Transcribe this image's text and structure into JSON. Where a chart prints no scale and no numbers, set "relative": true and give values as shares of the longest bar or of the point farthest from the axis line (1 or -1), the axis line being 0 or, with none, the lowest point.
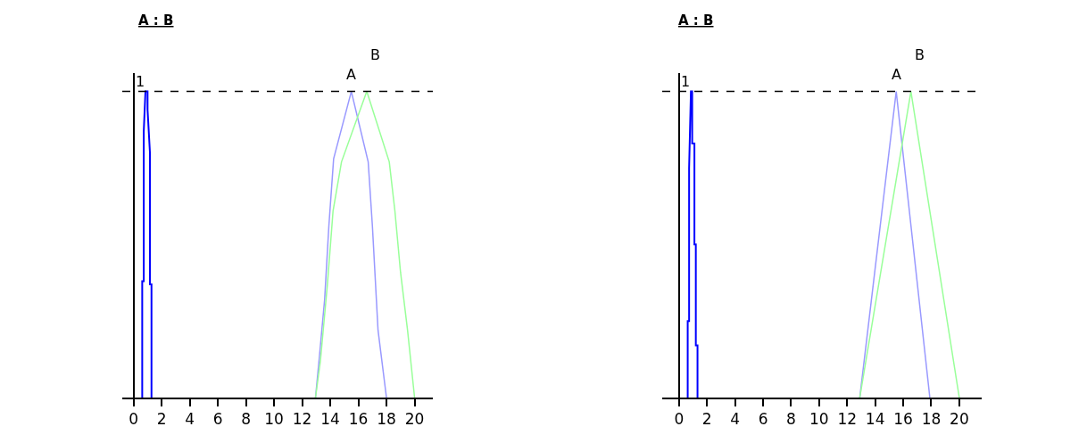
{
  "chart_data": [
    {
      "type": "line",
      "title": "A : B",
      "relative": true,
      "xlim": [
        -0.8,
        21.3
      ],
      "xticks": [
        0,
        2,
        4,
        6,
        8,
        10,
        12,
        14,
        16,
        18,
        20
      ],
      "marker": "none",
      "ref_lines": [
        {
          "axis": "y",
          "value": 1,
          "label": "1",
          "color": "#000000",
          "line_style": "dashed"
        }
      ],
      "series": [
        {
          "color": "#0000ff",
          "x": [
            0.62,
            0.62,
            0.73,
            0.73,
            0.85,
            1.0,
            1.0,
            1.17,
            1.17,
            1.28,
            1.28
          ],
          "values": [
            0,
            0.38,
            0.38,
            0.87,
            1,
            1,
            0.94,
            0.8,
            0.37,
            0.37,
            0
          ]
        },
        {
          "name": "A",
          "color": "#9999ff",
          "x": [
            12.95,
            13.2,
            13.6,
            13.9,
            14.24,
            15.5,
            16.7,
            17.0,
            17.4,
            18.0
          ],
          "values": [
            0,
            0.12,
            0.32,
            0.56,
            0.78,
            1,
            0.77,
            0.56,
            0.22,
            0
          ]
        },
        {
          "name": "B",
          "color": "#99ff99",
          "x": [
            12.95,
            13.3,
            13.8,
            14.2,
            14.8,
            16.6,
            18.2,
            18.6,
            19.0,
            19.5,
            20.0
          ],
          "values": [
            0,
            0.12,
            0.37,
            0.61,
            0.77,
            1,
            0.77,
            0.61,
            0.41,
            0.22,
            0
          ]
        }
      ]
    },
    {
      "type": "line",
      "title": "A : B",
      "relative": true,
      "xlim": [
        -1.2,
        21.6
      ],
      "xticks": [
        0,
        2,
        4,
        6,
        8,
        10,
        12,
        14,
        16,
        18,
        20
      ],
      "marker": "none",
      "ref_lines": [
        {
          "axis": "y",
          "value": 1,
          "label": "1",
          "color": "#000000",
          "line_style": "dashed"
        }
      ],
      "series": [
        {
          "color": "#0000ff",
          "x": [
            0.62,
            0.62,
            0.72,
            0.72,
            0.85,
            0.94,
            0.94,
            1.1,
            1.1,
            1.2,
            1.2,
            1.32,
            1.32
          ],
          "values": [
            0,
            0.25,
            0.25,
            0.75,
            1,
            1,
            0.83,
            0.83,
            0.5,
            0.5,
            0.17,
            0.17,
            0
          ]
        },
        {
          "name": "A",
          "color": "#9999ff",
          "x": [
            12.9,
            15.5,
            17.9
          ],
          "values": [
            0,
            1,
            0
          ]
        },
        {
          "name": "B",
          "color": "#99ff99",
          "x": [
            12.9,
            16.55,
            20.0
          ],
          "values": [
            0,
            1,
            0
          ]
        }
      ]
    }
  ]
}
